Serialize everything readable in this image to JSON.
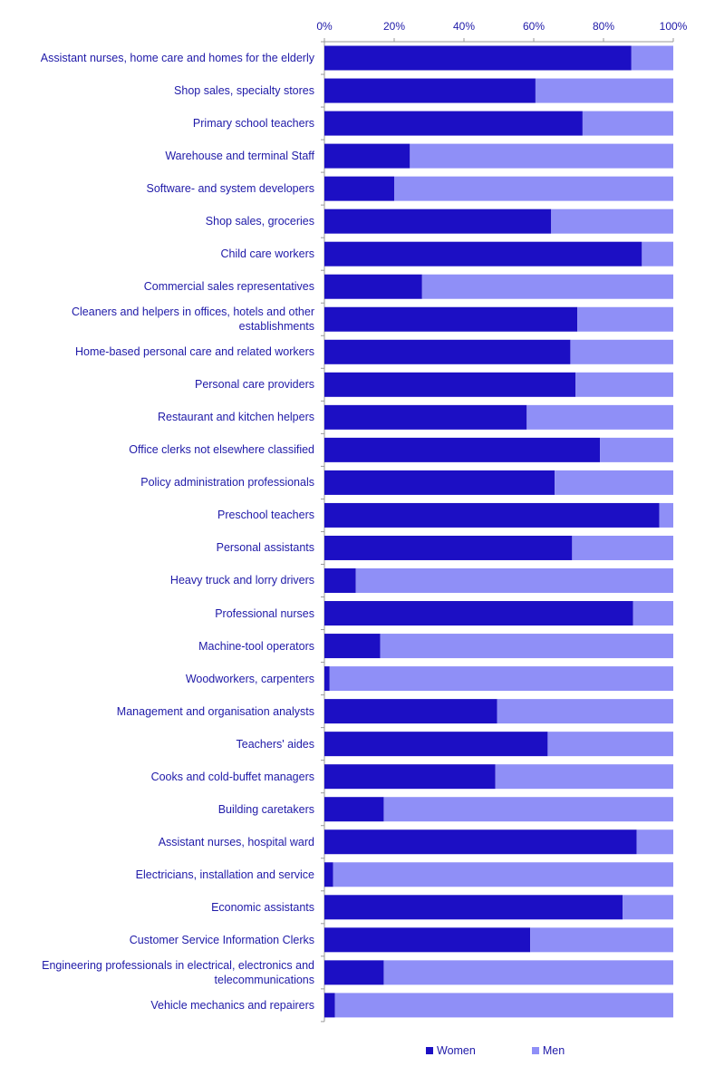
{
  "chart_data": {
    "type": "bar",
    "orientation": "horizontal",
    "stacked": true,
    "x_ticks": [
      "0%",
      "20%",
      "40%",
      "60%",
      "80%",
      "100%"
    ],
    "xlim": [
      0,
      100
    ],
    "categories": [
      "Assistant nurses, home care and homes for the elderly",
      "Shop sales, specialty stores",
      "Primary school teachers",
      "Warehouse and terminal Staff",
      "Software- and system developers",
      "Shop sales, groceries",
      "Child care workers",
      "Commercial sales representatives",
      "Cleaners and helpers in offices, hotels and other establishments",
      "Home-based personal care and related workers",
      "Personal care providers",
      "Restaurant and kitchen helpers",
      "Office clerks not elsewhere classified",
      "Policy administration professionals",
      "Preschool teachers",
      "Personal assistants",
      "Heavy truck and lorry drivers",
      "Professional nurses",
      "Machine-tool operators",
      "Woodworkers, carpenters",
      "Management and organisation analysts",
      "Teachers' aides",
      "Cooks and cold-buffet managers",
      "Building caretakers",
      "Assistant nurses, hospital ward",
      "Electricians, installation and service",
      "Economic assistants",
      "Customer Service Information Clerks",
      "Engineering professionals in electrical, electronics and telecommunications",
      "Vehicle mechanics and repairers"
    ],
    "series": [
      {
        "name": "Women",
        "color": "#1c0fc4",
        "values": [
          88,
          60.5,
          74,
          24.5,
          20,
          65,
          91,
          28,
          72.5,
          70.5,
          72,
          58,
          79,
          66,
          96,
          71,
          9,
          88.5,
          16,
          1.5,
          49.5,
          64,
          49,
          17,
          89.5,
          2.5,
          85.5,
          59,
          17,
          3
        ]
      },
      {
        "name": "Men",
        "color": "#8f8ff7",
        "values": [
          12,
          39.5,
          26,
          75.5,
          80,
          35,
          9,
          72,
          27.5,
          29.5,
          28,
          42,
          21,
          34,
          4,
          29,
          91,
          11.5,
          84,
          98.5,
          50.5,
          36,
          51,
          83,
          10.5,
          97.5,
          14.5,
          41,
          83,
          97
        ]
      }
    ],
    "legend": {
      "position": "bottom",
      "labels": [
        "Women",
        "Men"
      ]
    },
    "grid": false
  }
}
